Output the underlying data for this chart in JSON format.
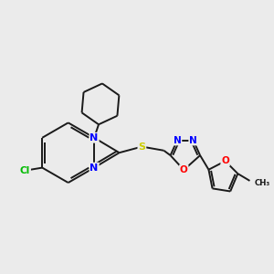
{
  "background_color": "#ebebeb",
  "bond_color": "#1a1a1a",
  "atom_colors": {
    "N": "#0000ff",
    "O": "#ff0000",
    "S": "#cccc00",
    "Cl": "#00bb00",
    "C": "#1a1a1a"
  },
  "lw": 1.4
}
